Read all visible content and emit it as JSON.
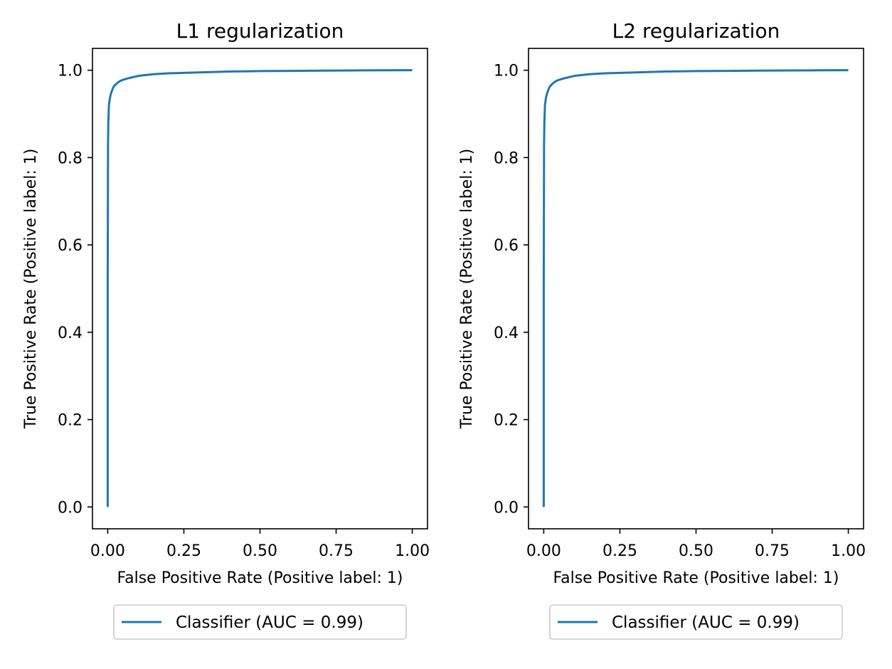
{
  "colors": {
    "series": "#1f77b4",
    "axes": "#000000",
    "legend_border": "#cccccc"
  },
  "chart_data": [
    {
      "type": "line",
      "title": "L1 regularization",
      "xlabel": "False Positive Rate (Positive label: 1)",
      "ylabel": "True Positive Rate (Positive label: 1)",
      "xlim": [
        -0.05,
        1.05
      ],
      "ylim": [
        -0.05,
        1.05
      ],
      "xticks": [
        0.0,
        0.25,
        0.5,
        0.75,
        1.0
      ],
      "xtick_labels": [
        "0.00",
        "0.25",
        "0.50",
        "0.75",
        "1.00"
      ],
      "yticks": [
        0.0,
        0.2,
        0.4,
        0.6,
        0.8,
        1.0
      ],
      "ytick_labels": [
        "0.0",
        "0.2",
        "0.4",
        "0.6",
        "0.8",
        "1.0"
      ],
      "legend_placement": "below",
      "series": [
        {
          "name": "Classifier (AUC = 0.99)",
          "x": [
            0.0,
            0.0,
            0.001,
            0.002,
            0.004,
            0.007,
            0.01,
            0.015,
            0.02,
            0.03,
            0.04,
            0.05,
            0.07,
            0.1,
            0.15,
            0.2,
            0.3,
            0.4,
            0.5,
            0.6,
            0.7,
            0.8,
            0.9,
            1.0
          ],
          "y": [
            0.0,
            0.5,
            0.83,
            0.88,
            0.92,
            0.935,
            0.945,
            0.955,
            0.963,
            0.97,
            0.975,
            0.978,
            0.982,
            0.987,
            0.991,
            0.993,
            0.995,
            0.997,
            0.998,
            0.9985,
            0.999,
            0.9995,
            0.9998,
            1.0
          ]
        }
      ]
    },
    {
      "type": "line",
      "title": "L2 regularization",
      "xlabel": "False Positive Rate (Positive label: 1)",
      "ylabel": "True Positive Rate (Positive label: 1)",
      "xlim": [
        -0.05,
        1.05
      ],
      "ylim": [
        -0.05,
        1.05
      ],
      "xticks": [
        0.0,
        0.25,
        0.5,
        0.75,
        1.0
      ],
      "xtick_labels": [
        "0.00",
        "0.25",
        "0.50",
        "0.75",
        "1.00"
      ],
      "yticks": [
        0.0,
        0.2,
        0.4,
        0.6,
        0.8,
        1.0
      ],
      "ytick_labels": [
        "0.0",
        "0.2",
        "0.4",
        "0.6",
        "0.8",
        "1.0"
      ],
      "legend_placement": "below",
      "series": [
        {
          "name": "Classifier (AUC = 0.99)",
          "x": [
            0.0,
            0.0,
            0.001,
            0.002,
            0.004,
            0.007,
            0.01,
            0.015,
            0.02,
            0.03,
            0.04,
            0.05,
            0.07,
            0.1,
            0.15,
            0.2,
            0.3,
            0.4,
            0.5,
            0.6,
            0.7,
            0.8,
            0.9,
            1.0
          ],
          "y": [
            0.0,
            0.5,
            0.83,
            0.88,
            0.92,
            0.935,
            0.945,
            0.955,
            0.963,
            0.97,
            0.975,
            0.978,
            0.982,
            0.987,
            0.991,
            0.993,
            0.995,
            0.997,
            0.998,
            0.9985,
            0.999,
            0.9995,
            0.9998,
            1.0
          ]
        }
      ]
    }
  ]
}
